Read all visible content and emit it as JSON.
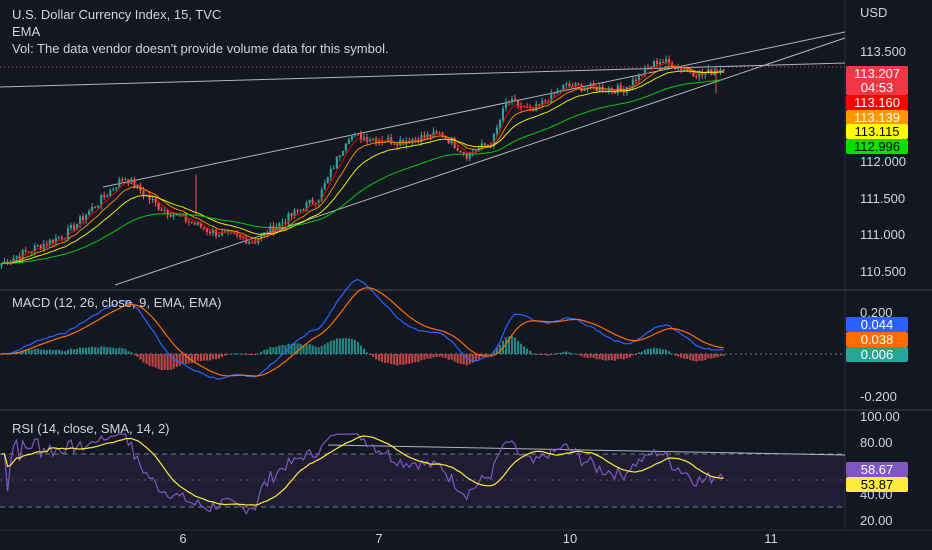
{
  "header": {
    "title": "U.S. Dollar Currency Index, 15, TVC",
    "indicator": "EMA",
    "vol_note": "Vol: The data vendor doesn't provide volume data for this symbol.",
    "currency": "USD"
  },
  "panes": {
    "macd_label": "MACD (12, 26, close, 9, EMA, EMA)",
    "rsi_label": "RSI (14, close, SMA, 14, 2)"
  },
  "price_tags": [
    {
      "text": "113.207",
      "bg": "#f23645",
      "fg": "#ffffff"
    },
    {
      "text": "04:53",
      "bg": "#f23645",
      "fg": "#ffffff"
    },
    {
      "text": "113.160",
      "bg": "#ff0000",
      "fg": "#ffffff"
    },
    {
      "text": "113.139",
      "bg": "#ff9800",
      "fg": "#ffffff"
    },
    {
      "text": "113.115",
      "bg": "#ffff00",
      "fg": "#000000"
    },
    {
      "text": "112.996",
      "bg": "#00e000",
      "fg": "#000000"
    }
  ],
  "macd_tags": [
    {
      "text": "0.044",
      "bg": "#2962ff",
      "fg": "#ffffff"
    },
    {
      "text": "0.038",
      "bg": "#ff6d00",
      "fg": "#ffffff"
    },
    {
      "text": "0.006",
      "bg": "#26a69a",
      "fg": "#ffffff"
    }
  ],
  "rsi_tags": [
    {
      "text": "58.67",
      "bg": "#7e57c2",
      "fg": "#ffffff"
    },
    {
      "text": "53.87",
      "bg": "#ffeb3b",
      "fg": "#000000"
    }
  ],
  "chart_data": {
    "type": "candlestick",
    "title": "U.S. Dollar Currency Index, 15, TVC",
    "x_ticks": [
      "6",
      "7",
      "10",
      "11"
    ],
    "price_ticks": [
      "113.500",
      "112.000",
      "111.500",
      "111.000",
      "110.500"
    ],
    "price_ylim": [
      110.3,
      113.75
    ],
    "macd_ticks": [
      "0.200",
      "-0.200"
    ],
    "macd_ylim": [
      -0.24,
      0.22
    ],
    "rsi_ticks": [
      "100.00",
      "80.00",
      "40.00",
      "20.00"
    ],
    "rsi_ylim": [
      15,
      102
    ],
    "rsi_band": [
      30,
      70
    ],
    "anchors": [
      {
        "x": 0.0,
        "price": 110.55
      },
      {
        "x": 0.09,
        "price": 110.95
      },
      {
        "x": 0.17,
        "price": 111.72
      },
      {
        "x": 0.22,
        "price": 111.3
      },
      {
        "x": 0.29,
        "price": 110.98
      },
      {
        "x": 0.35,
        "price": 110.85
      },
      {
        "x": 0.44,
        "price": 111.45
      },
      {
        "x": 0.48,
        "price": 112.28
      },
      {
        "x": 0.55,
        "price": 112.2
      },
      {
        "x": 0.61,
        "price": 112.3
      },
      {
        "x": 0.645,
        "price": 112.02
      },
      {
        "x": 0.68,
        "price": 112.2
      },
      {
        "x": 0.7,
        "price": 112.75
      },
      {
        "x": 0.735,
        "price": 112.6
      },
      {
        "x": 0.78,
        "price": 112.95
      },
      {
        "x": 0.86,
        "price": 112.9
      },
      {
        "x": 0.91,
        "price": 113.3
      },
      {
        "x": 0.97,
        "price": 113.1
      },
      {
        "x": 1.0,
        "price": 113.2
      }
    ],
    "last_price": 113.207,
    "ema_values": [
      113.16,
      113.139,
      113.115,
      112.996
    ],
    "ema_colors": [
      "#ff0000",
      "#ff9800",
      "#ffff00",
      "#00e000"
    ],
    "macd_last": {
      "macd": 0.044,
      "signal": 0.038,
      "histogram": 0.006
    },
    "rsi_last": {
      "rsi": 58.67,
      "sma": 53.87
    },
    "colors": {
      "up": "#26a69a",
      "down": "#ef5350",
      "macd": "#2962ff",
      "signal": "#ff6d00",
      "rsi": "#7e57c2",
      "rsi_sma": "#ffeb3b"
    }
  }
}
